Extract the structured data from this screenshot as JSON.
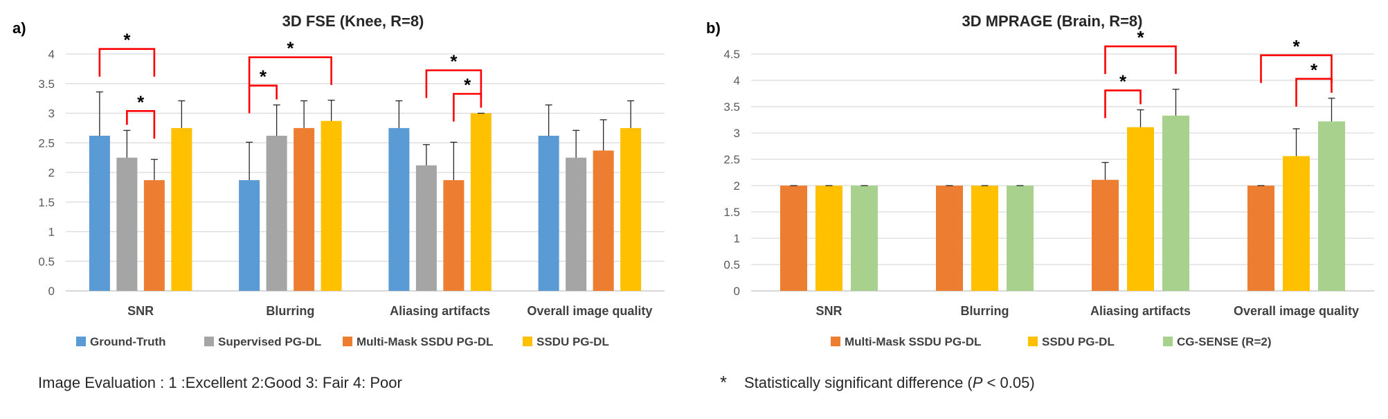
{
  "chart_data": [
    {
      "panel_label": "a)",
      "type": "bar",
      "title": "3D FSE (Knee, R=8)",
      "xlabel": "",
      "ylabel": "",
      "ylim": [
        0,
        4
      ],
      "yticks": [
        0,
        0.5,
        1,
        1.5,
        2,
        2.5,
        3,
        3.5,
        4
      ],
      "ytick_labels": [
        "0",
        "0.5",
        "1",
        "1.5",
        "2",
        "2.5",
        "3",
        "3.5",
        "4"
      ],
      "grid": true,
      "legend_position": "bottom",
      "categories": [
        "SNR",
        "Blurring",
        "Aliasing artifacts",
        "Overall image quality"
      ],
      "series": [
        {
          "name": "Ground-Truth",
          "color": "#5B9BD5",
          "values": [
            2.62,
            1.87,
            2.75,
            2.62
          ],
          "errors": [
            0.74,
            0.64,
            0.46,
            0.52
          ]
        },
        {
          "name": "Supervised  PG-DL",
          "color": "#A5A5A5",
          "values": [
            2.25,
            2.62,
            2.12,
            2.25
          ],
          "errors": [
            0.46,
            0.52,
            0.35,
            0.46
          ]
        },
        {
          "name": "Multi-Mask SSDU  PG-DL",
          "color": "#ED7D31",
          "values": [
            1.87,
            2.75,
            1.87,
            2.37
          ],
          "errors": [
            0.35,
            0.46,
            0.64,
            0.52
          ]
        },
        {
          "name": "SSDU  PG-DL",
          "color": "#FFC000",
          "values": [
            2.75,
            2.87,
            3.0,
            2.75
          ],
          "errors": [
            0.46,
            0.35,
            0.0,
            0.46
          ]
        }
      ],
      "significance": [
        {
          "category": 0,
          "from_series": 0,
          "to_series": 2,
          "level": 1,
          "label": "*"
        },
        {
          "category": 0,
          "from_series": 1,
          "to_series": 2,
          "level": 0,
          "label": "*"
        },
        {
          "category": 1,
          "from_series": 0,
          "to_series": 1,
          "level": 0,
          "label": "*"
        },
        {
          "category": 1,
          "from_series": 0,
          "to_series": 3,
          "level": 1,
          "label": "*"
        },
        {
          "category": 2,
          "from_series": 1,
          "to_series": 3,
          "level": 1,
          "label": "*"
        },
        {
          "category": 2,
          "from_series": 2,
          "to_series": 3,
          "level": 0,
          "label": "*"
        }
      ]
    },
    {
      "panel_label": "b)",
      "type": "bar",
      "title": "3D MPRAGE (Brain, R=8)",
      "xlabel": "",
      "ylabel": "",
      "ylim": [
        0,
        4.5
      ],
      "yticks": [
        0,
        0.5,
        1,
        1.5,
        2,
        2.5,
        3,
        3.5,
        4,
        4.5
      ],
      "ytick_labels": [
        "0",
        "0.5",
        "1",
        "1.5",
        "2",
        "2.5",
        "3",
        "3.5",
        "4",
        "4.5"
      ],
      "grid": true,
      "legend_position": "bottom",
      "categories": [
        "SNR",
        "Blurring",
        "Aliasing artifacts",
        "Overall image quality"
      ],
      "series": [
        {
          "name": "Multi-Mask SSDU  PG-DL",
          "color": "#ED7D31",
          "values": [
            2.0,
            2.0,
            2.11,
            2.0
          ],
          "errors": [
            0.0,
            0.0,
            0.33,
            0.0
          ]
        },
        {
          "name": "SSDU   PG-DL",
          "color": "#FFC000",
          "values": [
            2.0,
            2.0,
            3.11,
            2.56
          ],
          "errors": [
            0.0,
            0.0,
            0.33,
            0.52
          ]
        },
        {
          "name": "CG-SENSE (R=2)",
          "color": "#A9D18E",
          "values": [
            2.0,
            2.0,
            3.33,
            3.22
          ],
          "errors": [
            0.0,
            0.0,
            0.5,
            0.44
          ]
        }
      ],
      "significance": [
        {
          "category": 2,
          "from_series": 0,
          "to_series": 1,
          "level": 0,
          "label": "*"
        },
        {
          "category": 2,
          "from_series": 0,
          "to_series": 2,
          "level": 1,
          "label": "*"
        },
        {
          "category": 3,
          "from_series": 1,
          "to_series": 2,
          "level": 0,
          "label": "*"
        },
        {
          "category": 3,
          "from_series": 0,
          "to_series": 2,
          "level": 1,
          "label": "*"
        }
      ]
    }
  ],
  "footnotes": {
    "left": "Image Evaluation : 1 :Excellent     2:Good     3: Fair     4: Poor",
    "right_symbol": "*",
    "right_text_before": "Statistically significant difference (",
    "right_text_italic": "P",
    "right_text_after": " < 0.05)"
  },
  "colors": {
    "grid": "#D9D9D9",
    "axis_text": "#595959",
    "bracket": "#FF0000",
    "error_bar": "#262626"
  }
}
